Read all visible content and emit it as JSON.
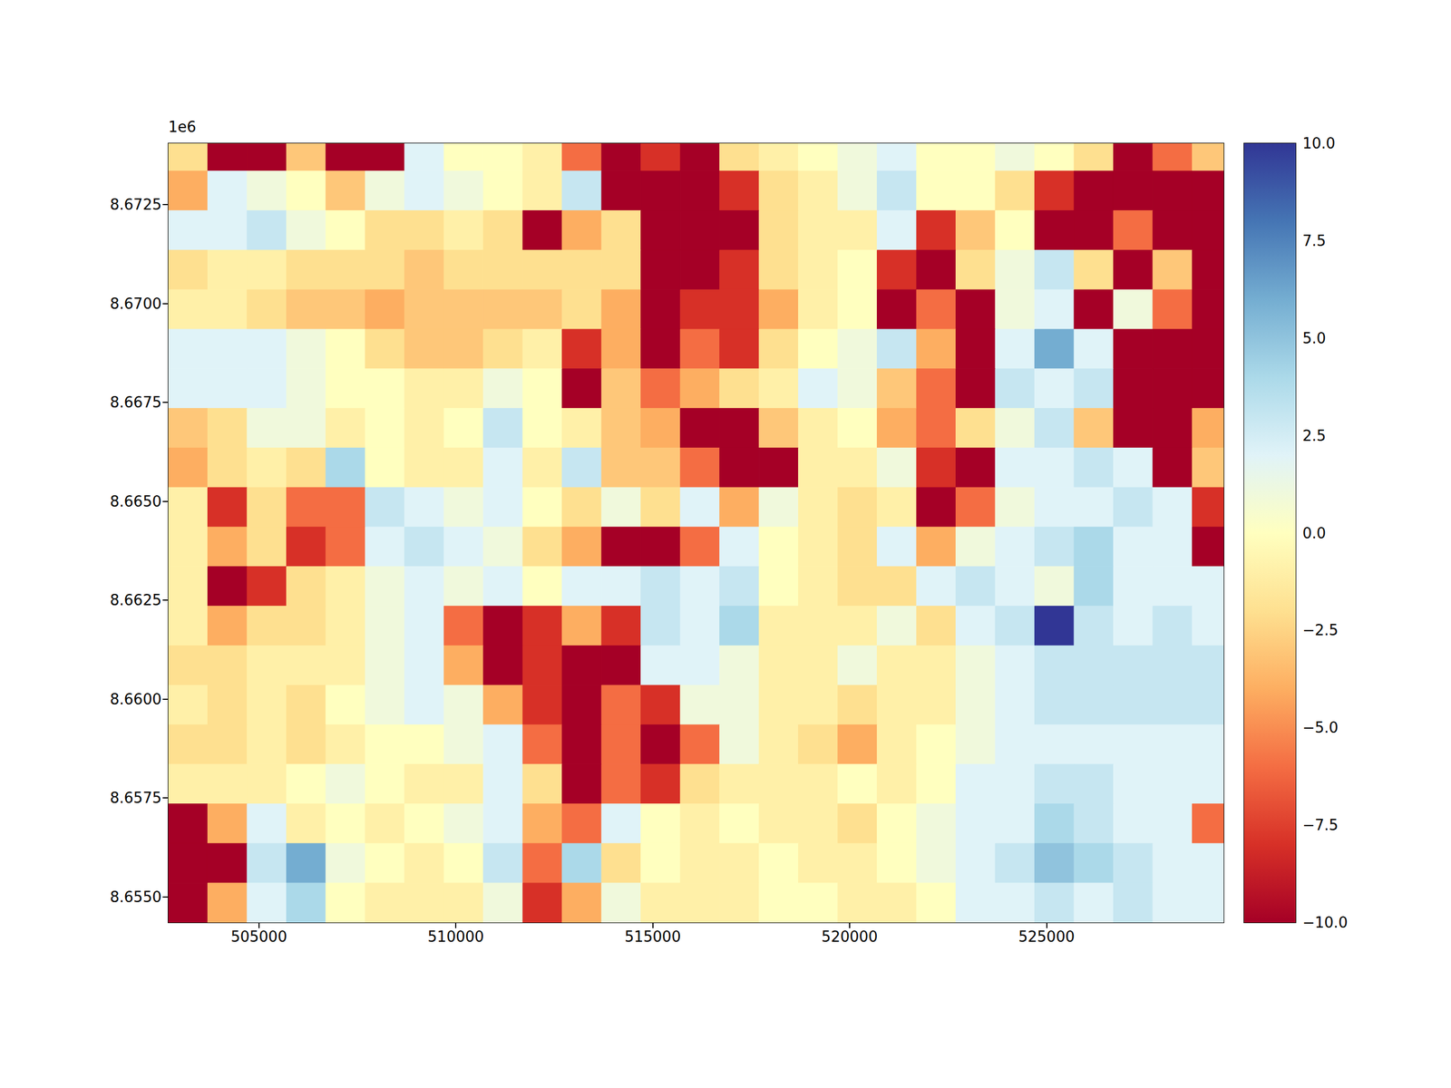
{
  "chart_data": {
    "type": "heatmap",
    "y_offset_label": "1e6",
    "xlim": [
      502700,
      529500
    ],
    "ylim": [
      8654350,
      8674050
    ],
    "xticks": [
      505000,
      510000,
      515000,
      520000,
      525000
    ],
    "yticks": [
      {
        "value": 8655000,
        "label": "8.6550"
      },
      {
        "value": 8657500,
        "label": "8.6575"
      },
      {
        "value": 8660000,
        "label": "8.6600"
      },
      {
        "value": 8662500,
        "label": "8.6625"
      },
      {
        "value": 8665000,
        "label": "8.6650"
      },
      {
        "value": 8667500,
        "label": "8.6675"
      },
      {
        "value": 8670000,
        "label": "8.6700"
      },
      {
        "value": 8672500,
        "label": "8.6725"
      }
    ],
    "grid": false,
    "x": [
      503200,
      504200,
      505200,
      506200,
      507200,
      508200,
      509200,
      510200,
      511200,
      512200,
      513200,
      514200,
      515200,
      516200,
      517200,
      518200,
      519200,
      520200,
      521200,
      522200,
      523200,
      524200,
      525200,
      526200,
      527200,
      528200,
      529200
    ],
    "y": [
      8673850,
      8672850,
      8671850,
      8670850,
      8669850,
      8668850,
      8667850,
      8666850,
      8665850,
      8664850,
      8663850,
      8662850,
      8661850,
      8660850,
      8659850,
      8658850,
      8657850,
      8656850,
      8655850,
      8654850
    ],
    "cells": [
      [
        -2,
        -10,
        -10,
        -3,
        -10,
        -10,
        2,
        0,
        0,
        -1,
        -6,
        -10,
        -8,
        -10,
        -2,
        -1,
        0,
        1,
        2,
        0,
        0,
        1,
        0,
        -2,
        -10,
        -6,
        -3
      ],
      [
        -4,
        2,
        1,
        0,
        -3,
        1,
        2,
        1,
        0,
        -1,
        3,
        -10,
        -10,
        -10,
        -8,
        -2,
        -1,
        1,
        3,
        0,
        0,
        -2,
        -8,
        -10,
        -10,
        -10,
        -10
      ],
      [
        2,
        2,
        3,
        1,
        0,
        -2,
        -2,
        -1,
        -2,
        -10,
        -4,
        -2,
        -10,
        -10,
        -10,
        -2,
        -1,
        -1,
        2,
        -8,
        -3,
        0,
        -10,
        -10,
        -6,
        -10,
        -10
      ],
      [
        -2,
        -1,
        -1,
        -2,
        -2,
        -2,
        -3,
        -2,
        -2,
        -2,
        -2,
        -2,
        -10,
        -10,
        -8,
        -2,
        -1,
        0,
        -8,
        -10,
        -2,
        1,
        3,
        -2,
        -10,
        -3,
        -10
      ],
      [
        -1,
        -1,
        -2,
        -3,
        -3,
        -4,
        -3,
        -3,
        -3,
        -3,
        -2,
        -4,
        -10,
        -8,
        -8,
        -4,
        -1,
        0,
        -10,
        -6,
        -10,
        1,
        2,
        -10,
        1,
        -6,
        -10
      ],
      [
        2,
        2,
        2,
        1,
        0,
        -2,
        -3,
        -3,
        -2,
        -1,
        -8,
        -4,
        -10,
        -6,
        -8,
        -2,
        0,
        1,
        3,
        -4,
        -10,
        2,
        6,
        2,
        -10,
        -10,
        -10
      ],
      [
        2,
        2,
        2,
        1,
        0,
        0,
        -1,
        -1,
        1,
        0,
        -10,
        -3,
        -6,
        -4,
        -2,
        -1,
        2,
        1,
        -3,
        -6,
        -10,
        3,
        2,
        3,
        -10,
        -10,
        -10
      ],
      [
        -3,
        -2,
        1,
        1,
        -1,
        0,
        -1,
        0,
        3,
        0,
        -1,
        -3,
        -4,
        -10,
        -10,
        -3,
        -1,
        0,
        -4,
        -6,
        -2,
        1,
        3,
        -3,
        -10,
        -10,
        -4
      ],
      [
        -4,
        -2,
        -1,
        -2,
        4,
        0,
        -1,
        -1,
        2,
        -1,
        3,
        -3,
        -3,
        -6,
        -10,
        -10,
        -1,
        -1,
        1,
        -8,
        -10,
        2,
        2,
        3,
        2,
        -10,
        -3
      ],
      [
        -1,
        -8,
        -2,
        -6,
        -6,
        3,
        2,
        1,
        2,
        0,
        -2,
        1,
        -2,
        2,
        -4,
        1,
        -1,
        -2,
        -1,
        -10,
        -6,
        1,
        2,
        2,
        3,
        2,
        -8
      ],
      [
        -1,
        -4,
        -2,
        -8,
        -6,
        2,
        3,
        2,
        1,
        -2,
        -4,
        -10,
        -10,
        -6,
        2,
        0,
        -1,
        -2,
        2,
        -4,
        1,
        2,
        3,
        4,
        2,
        2,
        -10
      ],
      [
        -1,
        -10,
        -8,
        -2,
        -1,
        1,
        2,
        1,
        2,
        0,
        2,
        2,
        3,
        2,
        3,
        0,
        -1,
        -2,
        -2,
        2,
        3,
        2,
        1,
        4,
        2,
        2,
        2
      ],
      [
        -1,
        -4,
        -2,
        -2,
        -1,
        1,
        2,
        -6,
        -10,
        -8,
        -4,
        -8,
        3,
        2,
        4,
        -1,
        -1,
        -1,
        1,
        -2,
        2,
        3,
        10,
        3,
        2,
        3,
        2
      ],
      [
        -2,
        -2,
        -1,
        -1,
        -1,
        1,
        2,
        -4,
        -10,
        -8,
        -10,
        -10,
        2,
        2,
        1,
        -1,
        -1,
        1,
        -1,
        -1,
        1,
        2,
        3,
        3,
        3,
        3,
        3
      ],
      [
        -1,
        -2,
        -1,
        -2,
        0,
        1,
        2,
        1,
        -4,
        -8,
        -10,
        -6,
        -8,
        1,
        1,
        -1,
        -1,
        -2,
        -1,
        -1,
        1,
        2,
        3,
        3,
        3,
        3,
        3
      ],
      [
        -2,
        -2,
        -1,
        -2,
        -1,
        0,
        0,
        1,
        2,
        -6,
        -10,
        -6,
        -10,
        -6,
        1,
        -1,
        -2,
        -4,
        -1,
        0,
        1,
        2,
        2,
        2,
        2,
        2,
        2
      ],
      [
        -1,
        -1,
        -1,
        0,
        1,
        0,
        -1,
        -1,
        2,
        -2,
        -10,
        -6,
        -8,
        -2,
        -1,
        -1,
        -1,
        0,
        -1,
        0,
        2,
        2,
        3,
        3,
        2,
        2,
        2
      ],
      [
        -10,
        -4,
        2,
        -1,
        0,
        -1,
        0,
        1,
        2,
        -4,
        -6,
        2,
        0,
        -1,
        0,
        -1,
        -1,
        -2,
        0,
        1,
        2,
        2,
        4,
        3,
        2,
        2,
        -6
      ],
      [
        -10,
        -10,
        3,
        6,
        1,
        0,
        -1,
        0,
        3,
        -6,
        4,
        -2,
        0,
        -1,
        -1,
        0,
        -1,
        -1,
        0,
        1,
        2,
        3,
        5,
        4,
        3,
        2,
        2
      ],
      [
        -10,
        -4,
        2,
        4,
        0,
        -1,
        -1,
        -1,
        1,
        -8,
        -4,
        1,
        -1,
        -1,
        -1,
        0,
        0,
        -1,
        -1,
        0,
        2,
        2,
        3,
        2,
        3,
        2,
        2
      ]
    ],
    "colorbar": {
      "range": [
        -10,
        10
      ],
      "ticks": [
        {
          "value": -10,
          "label": "−10.0"
        },
        {
          "value": -7.5,
          "label": "−7.5"
        },
        {
          "value": -5,
          "label": "−5.0"
        },
        {
          "value": -2.5,
          "label": "−2.5"
        },
        {
          "value": 0,
          "label": "0.0"
        },
        2.5,
        {
          "value": 5,
          "label": "5.0"
        },
        7.5,
        {
          "value": 10,
          "label": "10.0"
        }
      ]
    }
  }
}
